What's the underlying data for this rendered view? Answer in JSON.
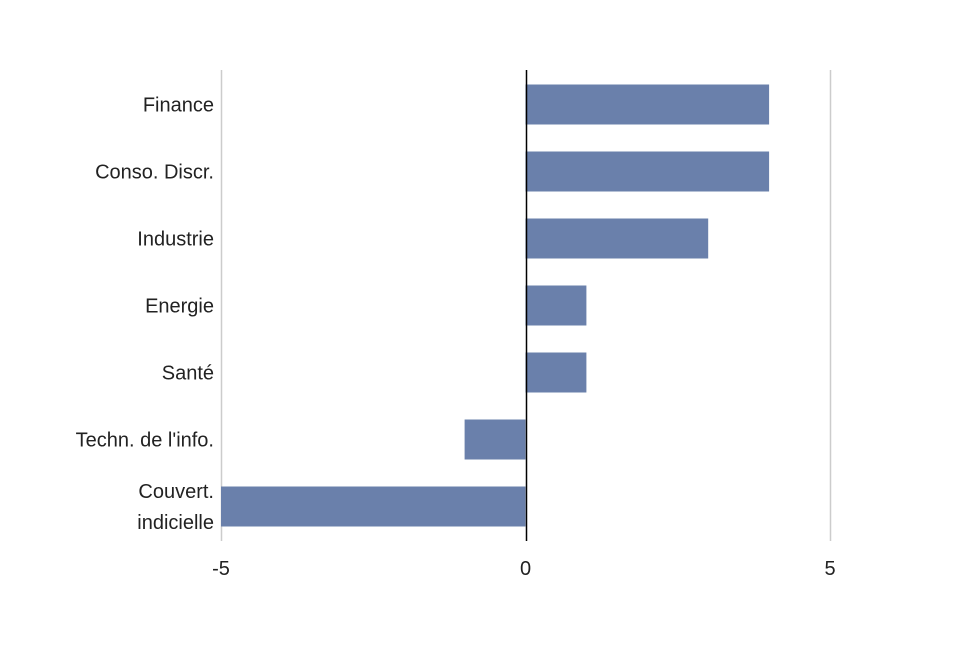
{
  "chart_data": {
    "type": "bar",
    "orientation": "horizontal",
    "categories": [
      [
        "Finance"
      ],
      [
        "Conso. Discr."
      ],
      [
        "Industrie"
      ],
      [
        "Energie"
      ],
      [
        "Santé"
      ],
      [
        "Techn. de l'info."
      ],
      [
        "Couvert.",
        "indicielle"
      ]
    ],
    "values": [
      4,
      4,
      3,
      1,
      1,
      -1,
      -5
    ],
    "xlim": [
      -5,
      5
    ],
    "xticks": [
      -5,
      0,
      5
    ],
    "xtick_labels": [
      "-5",
      "0",
      "5"
    ],
    "grid": true,
    "bar_color": "#6a80ab",
    "zero_line_color": "#000000",
    "grid_color": "#cccccc"
  }
}
